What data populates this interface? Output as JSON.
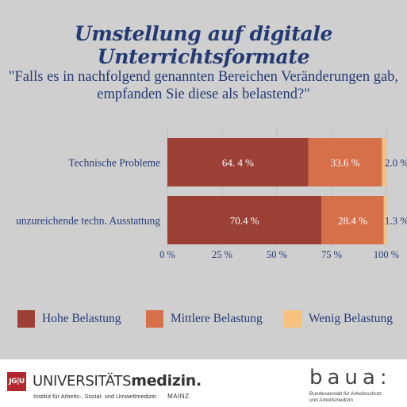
{
  "header": {
    "title": "Umstellung auf digitale Unterrichtsformate",
    "question_line1": "\"Falls es in nachfolgend genannten Bereichen Veränderungen gab,",
    "question_line2": "empfanden Sie diese als belastend?\""
  },
  "chart_data": {
    "type": "bar",
    "orientation": "horizontal",
    "stacked": true,
    "categories": [
      "Technische Probleme",
      "unzureichende techn. Ausstattung"
    ],
    "series": [
      {
        "name": "Hohe Belastung",
        "values": [
          64.4,
          70.4
        ],
        "labels": [
          "64. 4 %",
          "70.4 %"
        ],
        "color": "#9c4036"
      },
      {
        "name": "Mittlere Belastung",
        "values": [
          33.6,
          28.4
        ],
        "labels": [
          "33.6 %",
          "28.4 %"
        ],
        "color": "#d6704b"
      },
      {
        "name": "Wenig Belastung",
        "values": [
          2.0,
          1.3
        ],
        "labels": [
          "2.0 %",
          "1.3 %"
        ],
        "color": "#f6c27e"
      }
    ],
    "xlim": [
      0,
      100
    ],
    "xticks": [
      0,
      25,
      50,
      75,
      100
    ],
    "xtick_labels": [
      "0 %",
      "25 %",
      "50 %",
      "75 %",
      "100 %"
    ],
    "grid": true,
    "legend_position": "bottom"
  },
  "colors": {
    "title": "#243a73",
    "background": "#cfcfcf",
    "grid": "#bdbdbd",
    "jgu_red": "#b3282d"
  },
  "footer": {
    "jgu_mark": "JG|U",
    "uni_text_a": "UNIVERSITÄTS",
    "uni_text_b": "medizin.",
    "institute": "Institut für Arbeits-, Sozial- und Umweltmedizin",
    "mainz": "MAINZ",
    "baua_logo": "baua:",
    "baua_sub_line1": "Bundesanstalt für Arbeitsschutz",
    "baua_sub_line2": "und Arbeitsmedizin"
  }
}
